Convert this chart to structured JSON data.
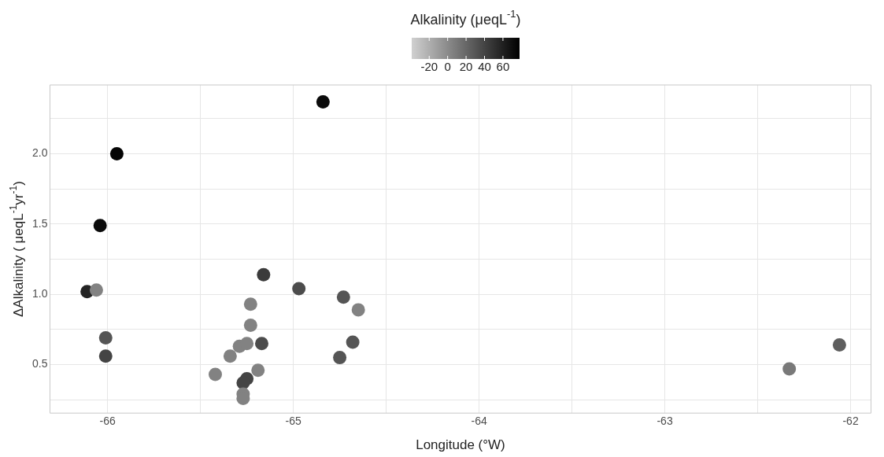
{
  "chart_data": {
    "type": "scatter",
    "xlabel": "Longitude (°W)",
    "ylabel": "ΔAlkalinity ( μeqL$^{-1}$yr$^{-1}$)",
    "clabel": "Alkalinity (μeqL$^{-1}$)",
    "x": [
      -64.84,
      -65.95,
      -66.04,
      -66.11,
      -66.06,
      -66.01,
      -66.01,
      -65.16,
      -64.97,
      -65.23,
      -65.23,
      -65.29,
      -65.25,
      -65.17,
      -65.34,
      -65.42,
      -65.19,
      -65.25,
      -65.27,
      -65.27,
      -65.27,
      -64.73,
      -64.65,
      -64.68,
      -64.75,
      -62.33,
      -62.06
    ],
    "values": [
      2.37,
      2.0,
      1.49,
      1.02,
      1.03,
      0.69,
      0.56,
      1.14,
      1.04,
      0.93,
      0.78,
      0.63,
      0.65,
      0.65,
      0.56,
      0.43,
      0.46,
      0.4,
      0.37,
      0.29,
      0.26,
      0.98,
      0.89,
      0.66,
      0.55,
      0.47,
      0.64
    ],
    "cvalues": [
      72,
      75,
      72,
      58,
      5,
      30,
      40,
      45,
      35,
      5,
      5,
      5,
      5,
      35,
      5,
      5,
      5,
      40,
      40,
      5,
      5,
      30,
      5,
      30,
      30,
      10,
      25
    ],
    "clim": [
      -39,
      78
    ],
    "cticks": [
      -20,
      0,
      20,
      40,
      60
    ],
    "xlim": [
      -66.31,
      -61.89
    ],
    "xticks": [
      -66,
      {
        "value": -65.5,
        "label": null
      },
      -65,
      {
        "value": -64.5,
        "label": null
      },
      -64,
      {
        "value": -63.5,
        "label": null
      },
      -63,
      {
        "value": -62.5,
        "label": null
      },
      -62
    ],
    "ylim": [
      0.155,
      2.49
    ],
    "yticks": [
      {
        "value": 0.25,
        "label": null
      },
      {
        "value": 0.5,
        "label": "0.5"
      },
      {
        "value": 0.75,
        "label": null
      },
      {
        "value": 1.0,
        "label": "1.0"
      },
      {
        "value": 1.25,
        "label": null
      },
      {
        "value": 1.5,
        "label": "1.5"
      },
      {
        "value": 1.75,
        "label": null
      },
      {
        "value": 2.0,
        "label": "2.0"
      },
      {
        "value": 2.25,
        "label": null
      }
    ],
    "grid": true,
    "marker": "circle",
    "legend": false
  }
}
